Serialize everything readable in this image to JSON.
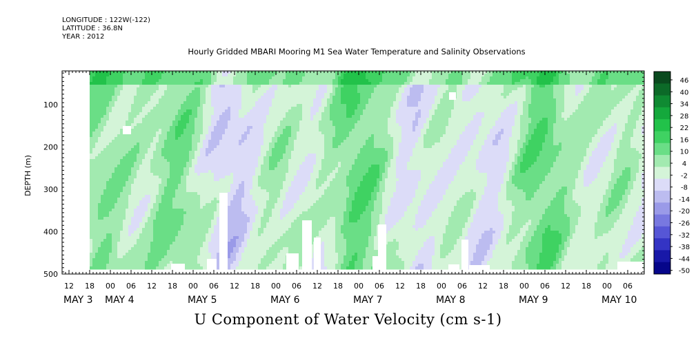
{
  "header": {
    "longitude": "LONGITUDE : 122W(-122)",
    "latitude": "LATITUDE : 36.8N",
    "year": "YEAR : 2012"
  },
  "chart_data": {
    "type": "heatmap",
    "title": "Hourly Gridded MBARI Mooring M1 Sea Water Temperature and Salinity Observations",
    "xlabel": "U Component of Water Velocity (cm s-1)",
    "ylabel": "DEPTH (m)",
    "y_ticks": [
      "100",
      "200",
      "300",
      "400",
      "500"
    ],
    "y_range": [
      20,
      500
    ],
    "hour_ticks": [
      "12",
      "18",
      "00",
      "06",
      "12",
      "18",
      "00",
      "06",
      "12",
      "18",
      "00",
      "06",
      "12",
      "18",
      "00",
      "06",
      "12",
      "18",
      "00",
      "06",
      "12",
      "18",
      "00",
      "06",
      "12",
      "18",
      "00",
      "06"
    ],
    "day_labels": [
      "MAY  3",
      "MAY  4",
      "MAY  5",
      "MAY  6",
      "MAY  7",
      "MAY  8",
      "MAY  9",
      "MAY 10"
    ],
    "x_range_hours": [
      "MAY 3 08:00",
      "MAY 10 12:00"
    ],
    "data_start": "MAY 3 18:00",
    "colorbar": {
      "labels": [
        "46",
        "40",
        "34",
        "28",
        "22",
        "16",
        "10",
        "4",
        "-2",
        "-8",
        "-14",
        "-20",
        "-26",
        "-32",
        "-38",
        "-44",
        "-50"
      ],
      "colors": [
        "#0a4a1e",
        "#0c6a28",
        "#0f8a32",
        "#14a83c",
        "#22c24a",
        "#3fd262",
        "#6ade86",
        "#a2eab0",
        "#d4f4d8",
        "#dcdcf8",
        "#bcbcf0",
        "#9a9ae8",
        "#7878e0",
        "#5656d6",
        "#3434c4",
        "#1818a8",
        "#06068a"
      ]
    }
  }
}
